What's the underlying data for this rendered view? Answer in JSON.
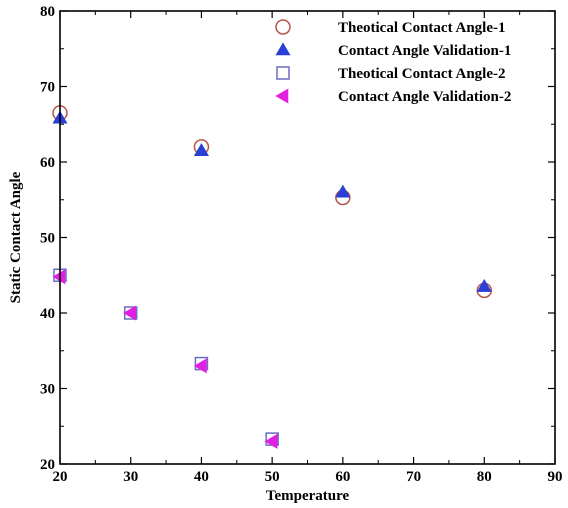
{
  "chart_data": {
    "type": "scatter",
    "title": "",
    "xlabel": "Temperature",
    "ylabel": "Static Contact Angle",
    "xlim": [
      20,
      90
    ],
    "ylim": [
      20,
      80
    ],
    "xticks": [
      "20",
      "30",
      "40",
      "50",
      "60",
      "70",
      "80",
      "90"
    ],
    "yticks": [
      "20",
      "30",
      "40",
      "50",
      "60",
      "70",
      "80"
    ],
    "grid": false,
    "legend_position": "top-right",
    "series": [
      {
        "name": "Theotical Contact Angle-1",
        "marker": "circle-open",
        "color": "#b5544a",
        "points": [
          [
            20,
            66.5
          ],
          [
            40,
            62
          ],
          [
            60,
            55.3
          ],
          [
            80,
            43
          ]
        ]
      },
      {
        "name": "Contact Angle Validation-1",
        "marker": "triangle-up-filled",
        "color": "#2a3fd6",
        "points": [
          [
            20,
            65.8
          ],
          [
            40,
            61.5
          ],
          [
            60,
            56
          ],
          [
            80,
            43.5
          ]
        ]
      },
      {
        "name": "Theotical Contact Angle-2",
        "marker": "square-open",
        "color": "#6b6bc4",
        "points": [
          [
            20,
            45
          ],
          [
            30,
            40
          ],
          [
            40,
            33.3
          ],
          [
            50,
            23.3
          ]
        ]
      },
      {
        "name": "Contact Angle Validation-2",
        "marker": "triangle-left-filled",
        "color": "#e11ee1",
        "points": [
          [
            20,
            44.8
          ],
          [
            30,
            40
          ],
          [
            40,
            33
          ],
          [
            50,
            23
          ]
        ]
      }
    ]
  }
}
